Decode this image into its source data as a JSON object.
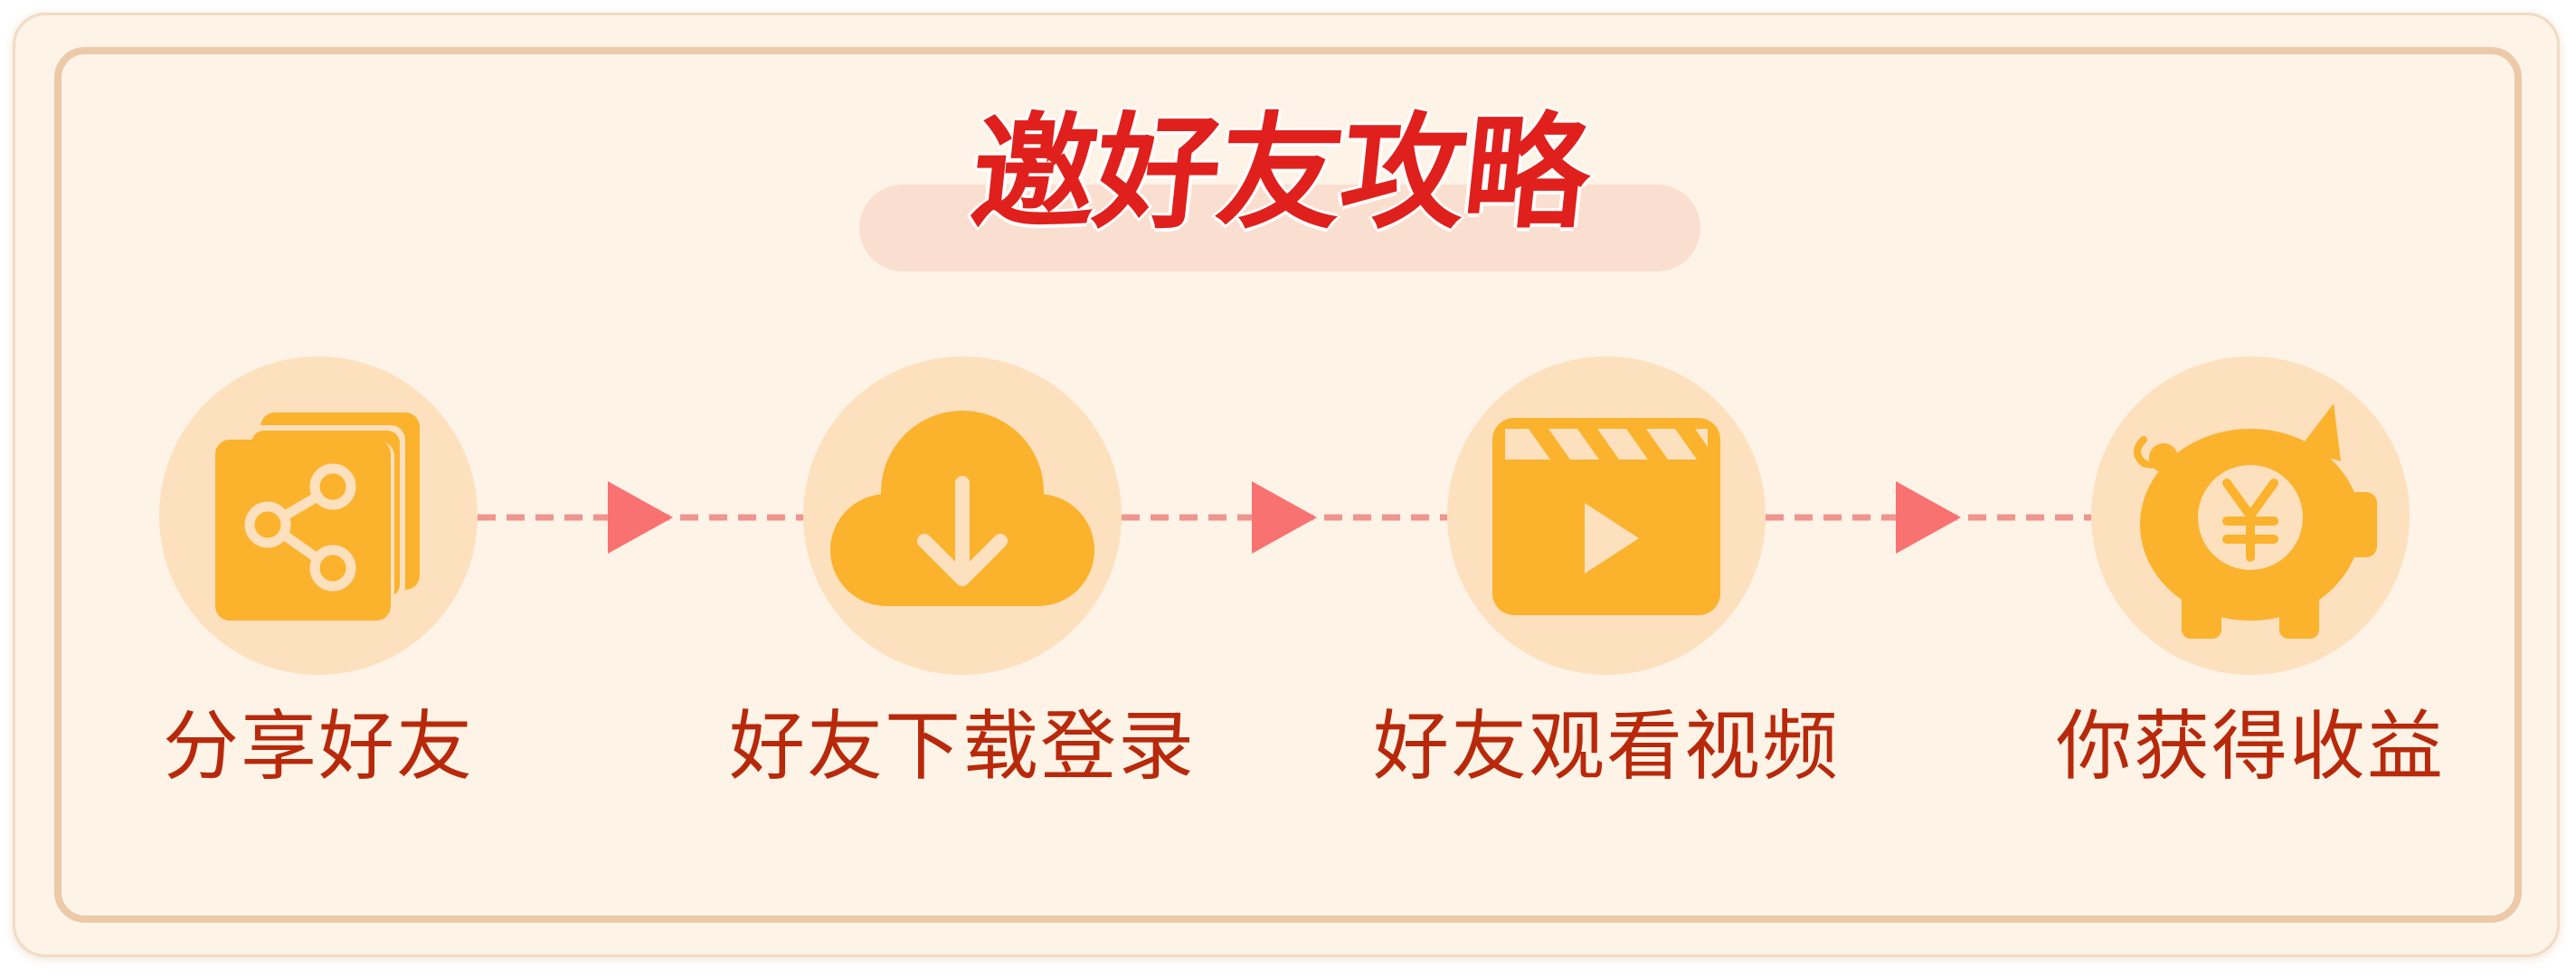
{
  "title": "邀好友攻略",
  "steps": [
    {
      "label": "分享好友",
      "icon": "share-icon"
    },
    {
      "label": "好友下载登录",
      "icon": "cloud-download-icon"
    },
    {
      "label": "好友观看视频",
      "icon": "video-clapperboard-icon"
    },
    {
      "label": "你获得收益",
      "icon": "piggy-bank-yuan-icon"
    }
  ],
  "colors": {
    "background": "#fdf3e6",
    "frame": "#ecc9a8",
    "title": "#e0201c",
    "title_pill": "#fadfd0",
    "icon_circle": "#fde0bd",
    "icon_fill": "#fbb22d",
    "label": "#b8290b",
    "connector_dash": "#ef9590",
    "connector_arrow": "#f97272"
  },
  "currency_symbol": "¥"
}
